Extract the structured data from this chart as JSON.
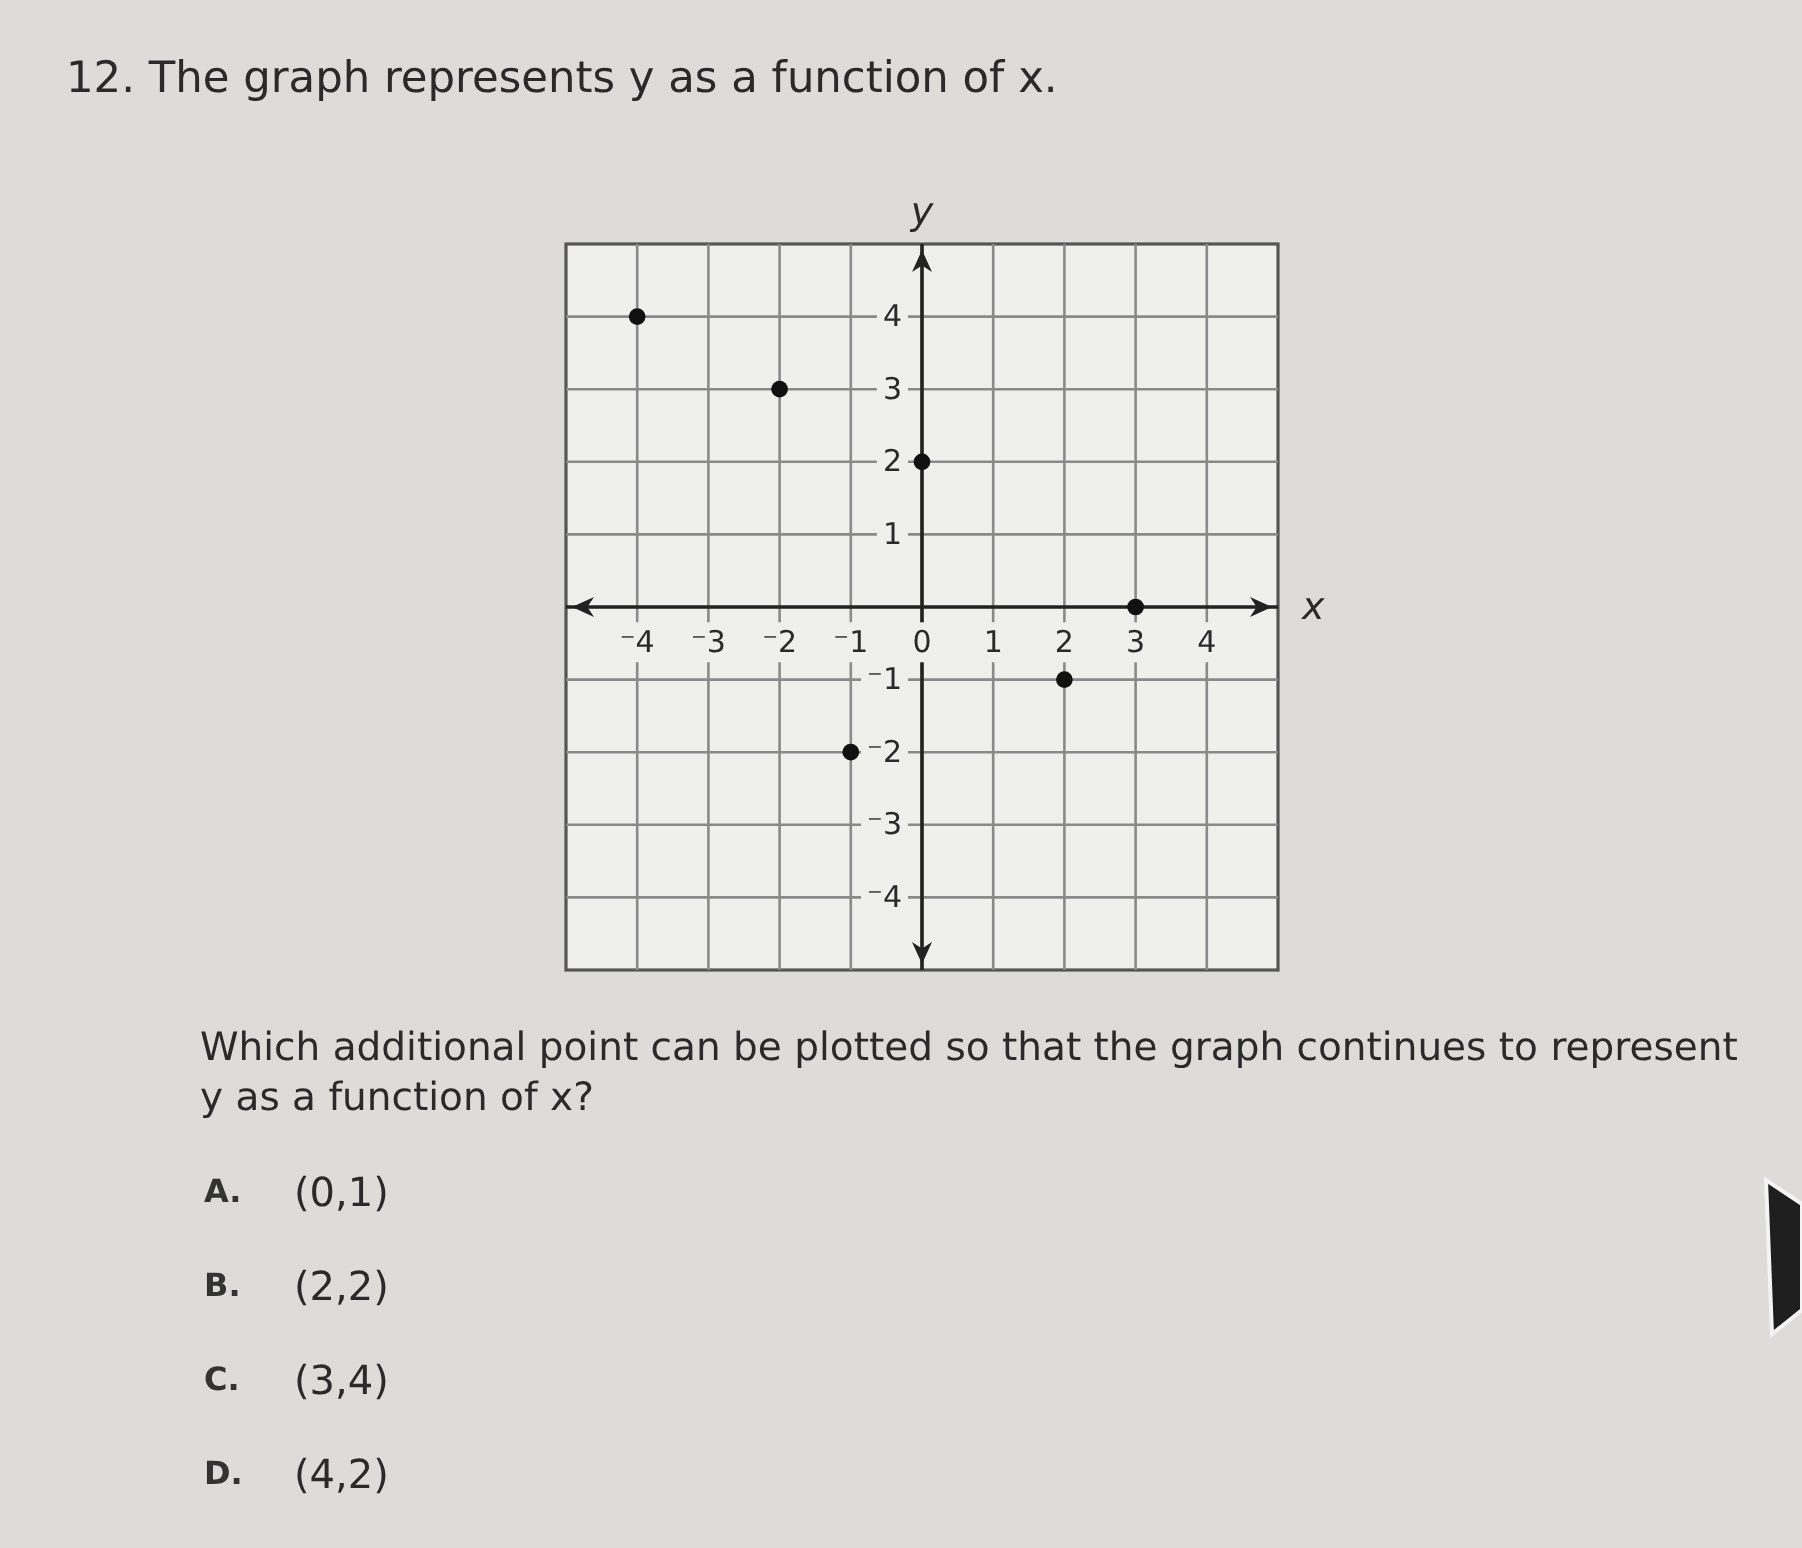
{
  "chart_data": {
    "type": "scatter",
    "title": "12. The graph represents y as a function of x.",
    "xlabel": "x",
    "ylabel": "y",
    "x": [
      -4,
      -2,
      0,
      3,
      2,
      -1
    ],
    "values": [
      4,
      3,
      2,
      0,
      -1,
      -2
    ],
    "color": "#111111",
    "marker": "circle",
    "xlim": [
      -5,
      5
    ],
    "ylim": [
      -5,
      5
    ],
    "xticks": [
      {
        "value": -4,
        "label": "⁻4"
      },
      {
        "value": -3,
        "label": "⁻3"
      },
      {
        "value": -2,
        "label": "⁻2"
      },
      {
        "value": -1,
        "label": "⁻1"
      },
      0,
      1,
      2,
      3,
      4
    ],
    "yticks": [
      {
        "value": -4,
        "label": "⁻4"
      },
      {
        "value": -3,
        "label": "⁻3"
      },
      {
        "value": -2,
        "label": "⁻2"
      },
      {
        "value": -1,
        "label": "⁻1"
      },
      1,
      2,
      3,
      4
    ],
    "grid": true,
    "annotations": [
      "Which additional point can be plotted so that the graph continues to represent y as a function of x?",
      "A. (0,1)",
      "B. (2,2)",
      "C. (3,4)",
      "D. (4,2)"
    ]
  }
}
